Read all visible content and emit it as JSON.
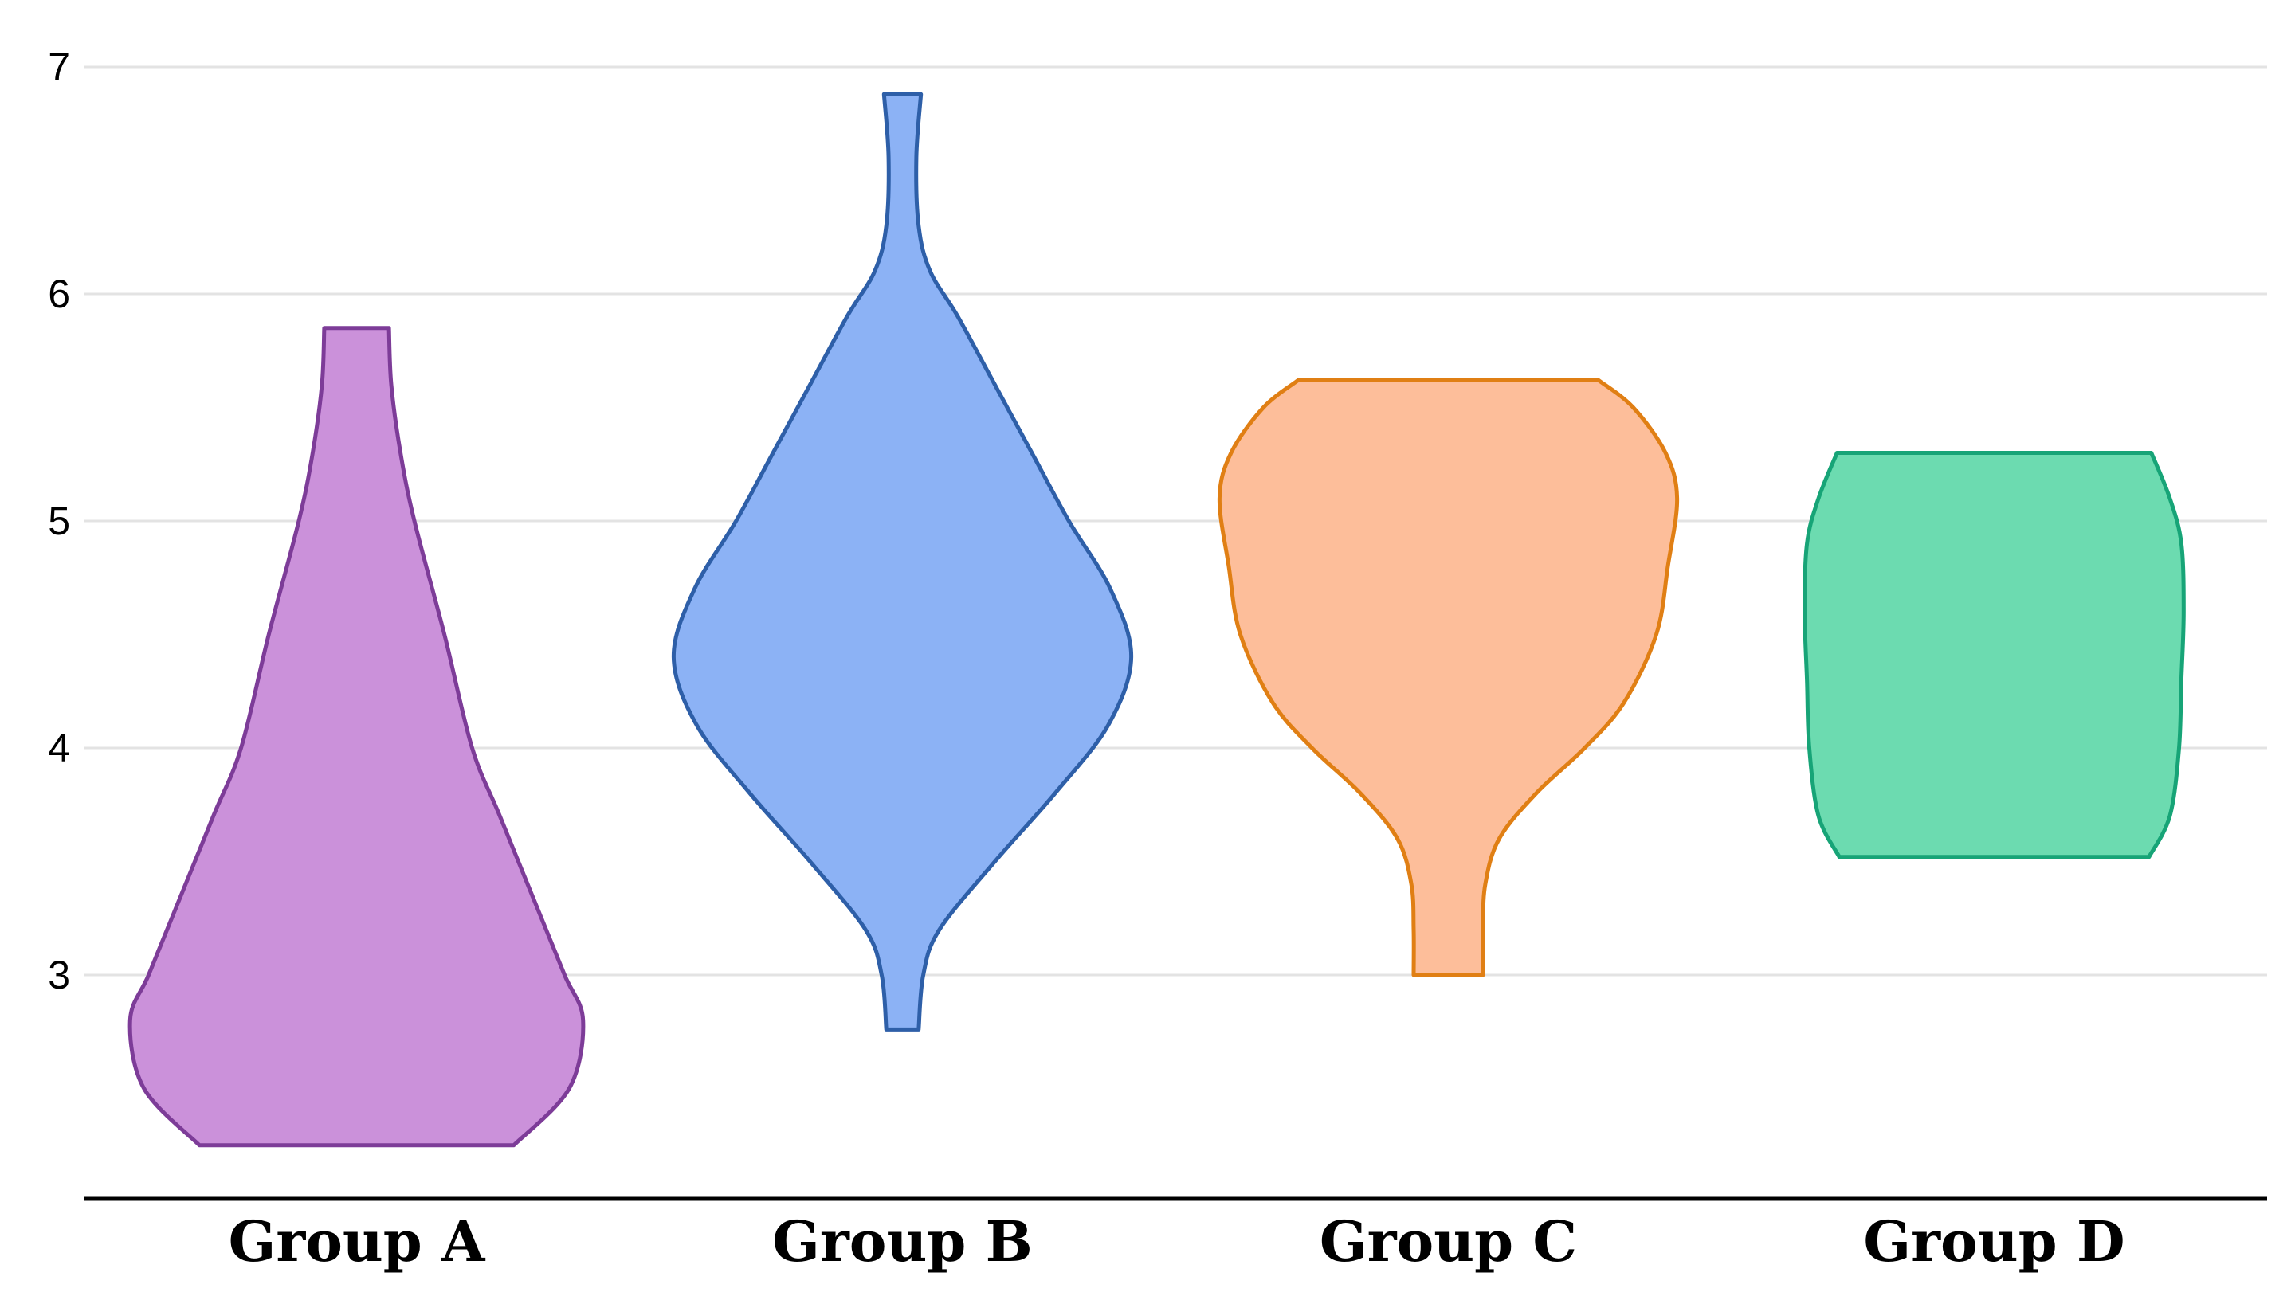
{
  "chart_data": {
    "type": "violin",
    "categories": [
      "Group A",
      "Group B",
      "Group C",
      "Group D"
    ],
    "ylim": [
      2.0,
      7.2
    ],
    "yticks": [
      3,
      4,
      5,
      6,
      7
    ],
    "grid": true,
    "legend": "none",
    "series": [
      {
        "category": "Group A",
        "fill": "#cb91da",
        "stroke": "#7d3c98",
        "min": 2.25,
        "max": 5.85,
        "profile": [
          [
            2.25,
            0.68
          ],
          [
            2.5,
            0.92
          ],
          [
            2.8,
            0.98
          ],
          [
            3.0,
            0.9
          ],
          [
            3.3,
            0.78
          ],
          [
            3.7,
            0.62
          ],
          [
            4.0,
            0.5
          ],
          [
            4.5,
            0.38
          ],
          [
            5.0,
            0.25
          ],
          [
            5.3,
            0.19
          ],
          [
            5.6,
            0.15
          ],
          [
            5.85,
            0.14
          ]
        ]
      },
      {
        "category": "Group B",
        "fill": "#8cb2f5",
        "stroke": "#2e5fa8",
        "min": 2.76,
        "max": 6.88,
        "profile": [
          [
            2.76,
            0.07
          ],
          [
            3.0,
            0.09
          ],
          [
            3.2,
            0.16
          ],
          [
            3.5,
            0.4
          ],
          [
            3.8,
            0.66
          ],
          [
            4.1,
            0.89
          ],
          [
            4.4,
            0.99
          ],
          [
            4.7,
            0.9
          ],
          [
            5.0,
            0.72
          ],
          [
            5.3,
            0.56
          ],
          [
            5.6,
            0.4
          ],
          [
            5.9,
            0.24
          ],
          [
            6.1,
            0.12
          ],
          [
            6.3,
            0.07
          ],
          [
            6.6,
            0.06
          ],
          [
            6.88,
            0.08
          ]
        ]
      },
      {
        "category": "Group C",
        "fill": "#fdbe9a",
        "stroke": "#e07f14",
        "min": 3.0,
        "max": 5.62,
        "profile": [
          [
            3.0,
            0.15
          ],
          [
            3.2,
            0.15
          ],
          [
            3.4,
            0.16
          ],
          [
            3.6,
            0.22
          ],
          [
            3.8,
            0.38
          ],
          [
            4.0,
            0.59
          ],
          [
            4.2,
            0.76
          ],
          [
            4.5,
            0.9
          ],
          [
            4.8,
            0.95
          ],
          [
            5.1,
            0.99
          ],
          [
            5.3,
            0.94
          ],
          [
            5.5,
            0.8
          ],
          [
            5.62,
            0.65
          ]
        ]
      },
      {
        "category": "Group D",
        "fill": "#6cdbb0",
        "stroke": "#17a477",
        "min": 3.52,
        "max": 5.3,
        "profile": [
          [
            3.52,
            0.67
          ],
          [
            3.7,
            0.76
          ],
          [
            4.0,
            0.8
          ],
          [
            4.3,
            0.81
          ],
          [
            4.6,
            0.82
          ],
          [
            4.9,
            0.81
          ],
          [
            5.1,
            0.76
          ],
          [
            5.3,
            0.68
          ]
        ]
      }
    ]
  }
}
